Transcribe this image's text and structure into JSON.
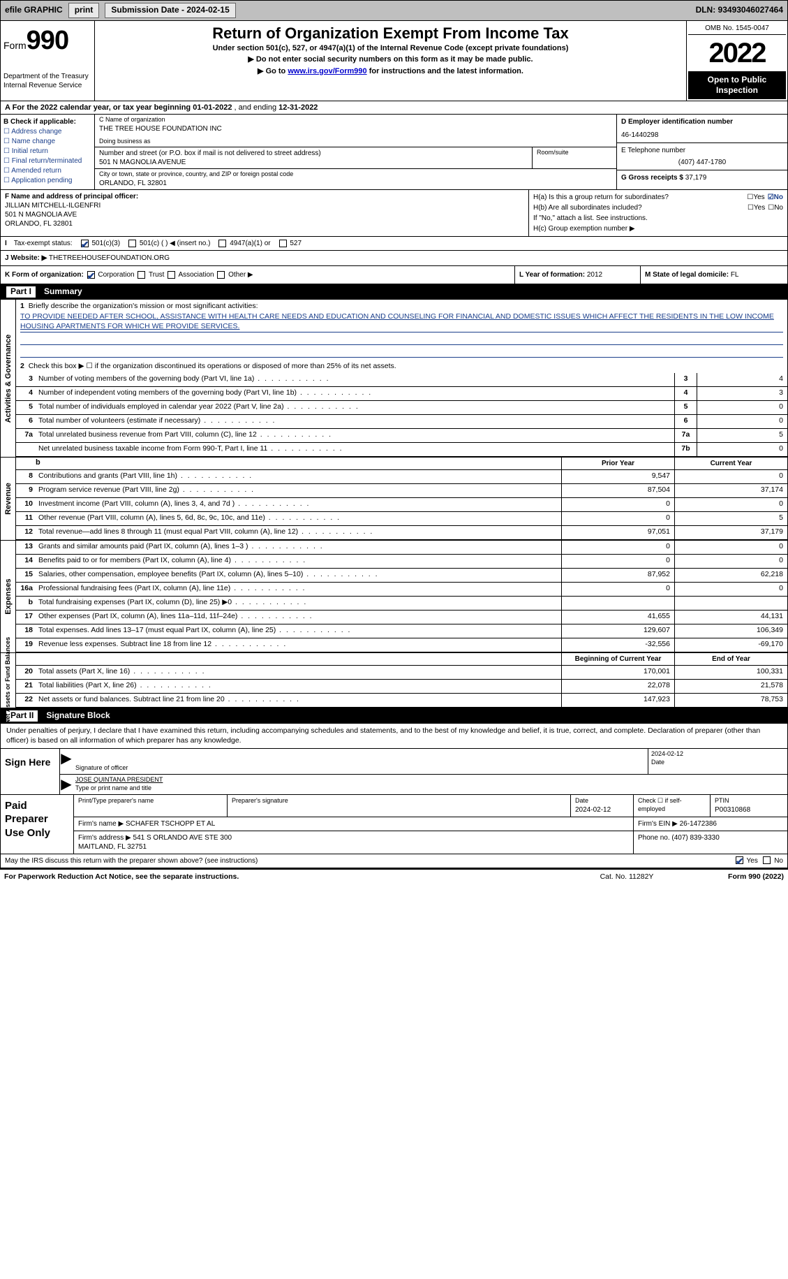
{
  "topbar": {
    "efile": "efile GRAPHIC",
    "print": "print",
    "sub_label": "Submission Date - 2024-02-15",
    "dln": "DLN: 93493046027464"
  },
  "header": {
    "form_word": "Form",
    "form_num": "990",
    "dept": "Department of the Treasury\nInternal Revenue Service",
    "title": "Return of Organization Exempt From Income Tax",
    "subtitle": "Under section 501(c), 527, or 4947(a)(1) of the Internal Revenue Code (except private foundations)",
    "note1": "▶ Do not enter social security numbers on this form as it may be made public.",
    "note2_a": "▶ Go to ",
    "note2_link": "www.irs.gov/Form990",
    "note2_b": " for instructions and the latest information.",
    "omb": "OMB No. 1545-0047",
    "year": "2022",
    "public": "Open to Public Inspection"
  },
  "rowA": {
    "text_a": "A For the 2022 calendar year, or tax year beginning ",
    "begin": "01-01-2022",
    "mid": "   , and ending ",
    "end": "12-31-2022"
  },
  "B": {
    "label": "B Check if applicable:",
    "items": [
      "Address change",
      "Name change",
      "Initial return",
      "Final return/terminated",
      "Amended return",
      "Application pending"
    ]
  },
  "C": {
    "name_label": "C Name of organization",
    "name": "THE TREE HOUSE FOUNDATION INC",
    "dba_label": "Doing business as",
    "dba": "",
    "addr_label": "Number and street (or P.O. box if mail is not delivered to street address)",
    "addr": "501 N MAGNOLIA AVENUE",
    "room_label": "Room/suite",
    "city_label": "City or town, state or province, country, and ZIP or foreign postal code",
    "city": "ORLANDO, FL  32801"
  },
  "D": {
    "ein_label": "D Employer identification number",
    "ein": "46-1440298",
    "tel_label": "E Telephone number",
    "tel": "(407) 447-1780",
    "gross_label": "G Gross receipts $ ",
    "gross": "37,179"
  },
  "F": {
    "label": "F Name and address of principal officer:",
    "name": "JILLIAN MITCHELL-ILGENFRI",
    "addr1": "501 N MAGNOLIA AVE",
    "addr2": "ORLANDO, FL  32801"
  },
  "H": {
    "a": "H(a)  Is this a group return for subordinates?",
    "b": "H(b)  Are all subordinates included?",
    "bnote": "If \"No,\" attach a list. See instructions.",
    "c": "H(c)  Group exemption number ▶",
    "yes": "Yes",
    "no": "No"
  },
  "I": {
    "label": "Tax-exempt status:",
    "o1": "501(c)(3)",
    "o2": "501(c) (  ) ◀ (insert no.)",
    "o3": "4947(a)(1) or",
    "o4": "527"
  },
  "J": {
    "label": "J   Website: ▶",
    "val": "THETREEHOUSEFOUNDATION.ORG"
  },
  "K": {
    "label": "K Form of organization:",
    "opts": [
      "Corporation",
      "Trust",
      "Association",
      "Other ▶"
    ]
  },
  "L": {
    "label": "L Year of formation: ",
    "val": "2012"
  },
  "M": {
    "label": "M State of legal domicile: ",
    "val": "FL"
  },
  "partI": {
    "num": "Part I",
    "title": "Summary"
  },
  "mission": {
    "q1": "Briefly describe the organization's mission or most significant activities:",
    "text": "TO PROVIDE NEEDED AFTER SCHOOL, ASSISTANCE WITH HEALTH CARE NEEDS AND EDUCATION AND COUNSELING FOR FINANCIAL AND DOMESTIC ISSUES WHICH AFFECT THE RESIDENTS IN THE LOW INCOME HOUSING APARTMENTS FOR WHICH WE PROVIDE SERVICES.",
    "q2": "Check this box ▶ ☐  if the organization discontinued its operations or disposed of more than 25% of its net assets."
  },
  "side_labels": {
    "ag": "Activities & Governance",
    "rev": "Revenue",
    "exp": "Expenses",
    "na": "Net Assets or\nFund Balances"
  },
  "lines_top": [
    {
      "n": "3",
      "t": "Number of voting members of the governing body (Part VI, line 1a)",
      "c": "3",
      "v": "4"
    },
    {
      "n": "4",
      "t": "Number of independent voting members of the governing body (Part VI, line 1b)",
      "c": "4",
      "v": "3"
    },
    {
      "n": "5",
      "t": "Total number of individuals employed in calendar year 2022 (Part V, line 2a)",
      "c": "5",
      "v": "0"
    },
    {
      "n": "6",
      "t": "Total number of volunteers (estimate if necessary)",
      "c": "6",
      "v": "0"
    },
    {
      "n": "7a",
      "t": "Total unrelated business revenue from Part VIII, column (C), line 12",
      "c": "7a",
      "v": "5"
    },
    {
      "n": "",
      "t": "Net unrelated business taxable income from Form 990-T, Part I, line 11",
      "c": "7b",
      "v": "0"
    }
  ],
  "col_headers": {
    "prior": "Prior Year",
    "current": "Current Year",
    "boy": "Beginning of Current Year",
    "eoy": "End of Year"
  },
  "lines_rev": [
    {
      "n": "8",
      "t": "Contributions and grants (Part VIII, line 1h)",
      "p": "9,547",
      "c": "0"
    },
    {
      "n": "9",
      "t": "Program service revenue (Part VIII, line 2g)",
      "p": "87,504",
      "c": "37,174"
    },
    {
      "n": "10",
      "t": "Investment income (Part VIII, column (A), lines 3, 4, and 7d )",
      "p": "0",
      "c": "0"
    },
    {
      "n": "11",
      "t": "Other revenue (Part VIII, column (A), lines 5, 6d, 8c, 9c, 10c, and 11e)",
      "p": "0",
      "c": "5"
    },
    {
      "n": "12",
      "t": "Total revenue—add lines 8 through 11 (must equal Part VIII, column (A), line 12)",
      "p": "97,051",
      "c": "37,179"
    }
  ],
  "lines_exp": [
    {
      "n": "13",
      "t": "Grants and similar amounts paid (Part IX, column (A), lines 1–3 )",
      "p": "0",
      "c": "0"
    },
    {
      "n": "14",
      "t": "Benefits paid to or for members (Part IX, column (A), line 4)",
      "p": "0",
      "c": "0"
    },
    {
      "n": "15",
      "t": "Salaries, other compensation, employee benefits (Part IX, column (A), lines 5–10)",
      "p": "87,952",
      "c": "62,218"
    },
    {
      "n": "16a",
      "t": "Professional fundraising fees (Part IX, column (A), line 11e)",
      "p": "0",
      "c": "0"
    },
    {
      "n": "b",
      "t": "Total fundraising expenses (Part IX, column (D), line 25) ▶0",
      "p": "__shade__",
      "c": "__shade__"
    },
    {
      "n": "17",
      "t": "Other expenses (Part IX, column (A), lines 11a–11d, 11f–24e)",
      "p": "41,655",
      "c": "44,131"
    },
    {
      "n": "18",
      "t": "Total expenses. Add lines 13–17 (must equal Part IX, column (A), line 25)",
      "p": "129,607",
      "c": "106,349"
    },
    {
      "n": "19",
      "t": "Revenue less expenses. Subtract line 18 from line 12",
      "p": "-32,556",
      "c": "-69,170"
    }
  ],
  "lines_na": [
    {
      "n": "20",
      "t": "Total assets (Part X, line 16)",
      "p": "170,001",
      "c": "100,331"
    },
    {
      "n": "21",
      "t": "Total liabilities (Part X, line 26)",
      "p": "22,078",
      "c": "21,578"
    },
    {
      "n": "22",
      "t": "Net assets or fund balances. Subtract line 21 from line 20",
      "p": "147,923",
      "c": "78,753"
    }
  ],
  "partII": {
    "num": "Part II",
    "title": "Signature Block"
  },
  "sig": {
    "intro": "Under penalties of perjury, I declare that I have examined this return, including accompanying schedules and statements, and to the best of my knowledge and belief, it is true, correct, and complete. Declaration of preparer (other than officer) is based on all information of which preparer has any knowledge.",
    "here": "Sign Here",
    "sig_officer": "Signature of officer",
    "date_label": "Date",
    "date_val": "2024-02-12",
    "name_title": "JOSE QUINTANA  PRESIDENT",
    "name_title_label": "Type or print name and title"
  },
  "prep": {
    "title": "Paid Preparer Use Only",
    "h_name": "Print/Type preparer's name",
    "h_sig": "Preparer's signature",
    "h_date": "Date",
    "date_val": "2024-02-12",
    "h_check": "Check ☐ if self-employed",
    "h_ptin": "PTIN",
    "ptin": "P00310868",
    "firm_name_l": "Firm's name    ▶",
    "firm_name": "SCHAFER TSCHOPP ET AL",
    "firm_ein_l": "Firm's EIN ▶",
    "firm_ein": "26-1472386",
    "firm_addr_l": "Firm's address ▶",
    "firm_addr": "541 S ORLANDO AVE STE 300\nMAITLAND, FL  32751",
    "phone_l": "Phone no. ",
    "phone": "(407) 839-3330"
  },
  "footer_q": "May the IRS discuss this return with the preparer shown above? (see instructions)",
  "bottom": {
    "l": "For Paperwork Reduction Act Notice, see the separate instructions.",
    "m": "Cat. No. 11282Y",
    "r": "Form 990 (2022)"
  },
  "colors": {
    "link": "#0000cc",
    "check": "#1b3f8b",
    "shade": "#bfbfbf"
  }
}
